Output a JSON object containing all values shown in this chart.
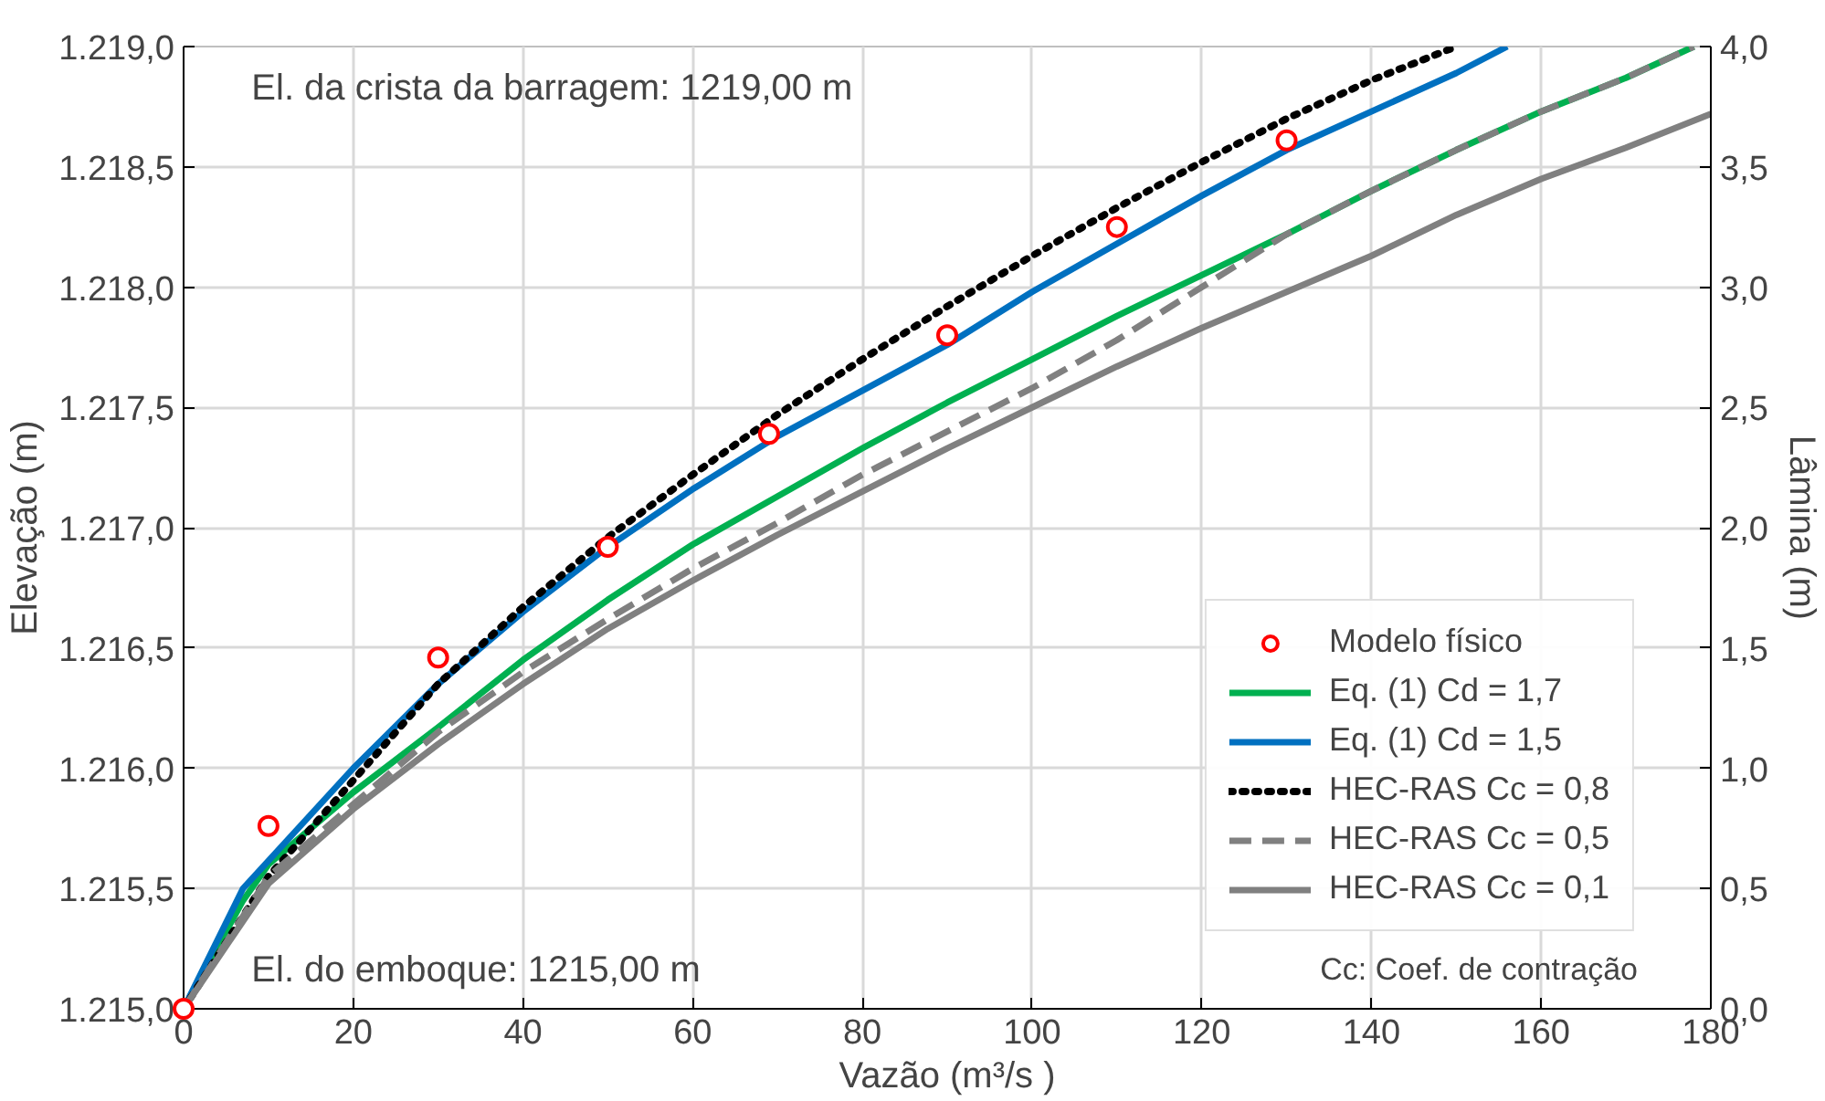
{
  "chart_data": {
    "type": "line",
    "xlabel": "Vazão (m³/s )",
    "ylabel": "Elevação (m)",
    "y2label": "Lâmina (m)",
    "xlim": [
      0,
      180
    ],
    "xticks": [
      0,
      20,
      40,
      60,
      80,
      100,
      120,
      140,
      160,
      180
    ],
    "ylim": [
      1215,
      1219
    ],
    "yticks": [
      {
        "value": 1215,
        "label": "1.215,0"
      },
      {
        "value": 1215.5,
        "label": "1.215,5"
      },
      {
        "value": 1216,
        "label": "1.216,0"
      },
      {
        "value": 1216.5,
        "label": "1.216,5"
      },
      {
        "value": 1217,
        "label": "1.217,0"
      },
      {
        "value": 1217.5,
        "label": "1.217,5"
      },
      {
        "value": 1218,
        "label": "1.218,0"
      },
      {
        "value": 1218.5,
        "label": "1.218,5"
      },
      {
        "value": 1219,
        "label": "1.219,0"
      }
    ],
    "y2lim": [
      0,
      4
    ],
    "y2ticks": [
      {
        "value": 0,
        "label": "0,0"
      },
      {
        "value": 0.5,
        "label": "0,5"
      },
      {
        "value": 1,
        "label": "1,0"
      },
      {
        "value": 1.5,
        "label": "1,5"
      },
      {
        "value": 2,
        "label": "2,0"
      },
      {
        "value": 2.5,
        "label": "2,5"
      },
      {
        "value": 3,
        "label": "3,0"
      },
      {
        "value": 3.5,
        "label": "3,5"
      },
      {
        "value": 4,
        "label": "4,0"
      }
    ],
    "grid": true,
    "legend": "bottom right",
    "annotations": [
      "El. da crista da barragem: 1219,00 m",
      "El. do emboque: 1215,00 m",
      "Cc: Coef. de contração"
    ],
    "series": [
      {
        "name": "Modelo físico",
        "type": "scatter",
        "marker": "circle",
        "color": "#ff0000",
        "x": [
          0,
          10,
          30,
          50,
          69,
          90,
          110,
          130
        ],
        "values": [
          1215,
          1215.76,
          1216.46,
          1216.92,
          1217.39,
          1217.8,
          1218.25,
          1218.61
        ]
      },
      {
        "name": "Eq. (1) Cd = 1,7",
        "line_style": "solid",
        "color": "#00b050",
        "x": [
          0,
          7,
          10,
          20,
          30,
          40,
          50,
          60,
          70,
          80,
          90,
          100,
          110,
          120,
          130,
          140,
          150,
          160,
          170,
          178
        ],
        "values": [
          1215,
          1215.45,
          1215.6,
          1215.9,
          1216.17,
          1216.45,
          1216.7,
          1216.93,
          1217.13,
          1217.33,
          1217.52,
          1217.7,
          1217.88,
          1218.05,
          1218.22,
          1218.4,
          1218.57,
          1218.73,
          1218.87,
          1219
        ]
      },
      {
        "name": "Eq. (1) Cd = 1,5",
        "line_style": "solid",
        "color": "#0070c0",
        "x": [
          0,
          7,
          20,
          30,
          40,
          50,
          60,
          70,
          80,
          90,
          100,
          110,
          120,
          130,
          140,
          150,
          156
        ],
        "values": [
          1215,
          1215.5,
          1216,
          1216.35,
          1216.65,
          1216.92,
          1217.16,
          1217.38,
          1217.57,
          1217.76,
          1217.98,
          1218.18,
          1218.38,
          1218.57,
          1218.73,
          1218.89,
          1219
        ]
      },
      {
        "name": "HEC-RAS Cc = 0,8",
        "line_style": "dotted",
        "color": "#000000",
        "x": [
          0,
          10,
          20,
          30,
          40,
          50,
          60,
          70,
          80,
          90,
          100,
          110,
          120,
          130,
          140,
          150
        ],
        "values": [
          1215,
          1215.55,
          1215.95,
          1216.35,
          1216.67,
          1216.96,
          1217.22,
          1217.47,
          1217.7,
          1217.92,
          1218.13,
          1218.33,
          1218.52,
          1218.7,
          1218.86,
          1219
        ]
      },
      {
        "name": "HEC-RAS Cc = 0,5",
        "line_style": "dashed",
        "color": "#808080",
        "x": [
          0,
          10,
          20,
          30,
          40,
          50,
          60,
          70,
          80,
          90,
          100,
          110,
          120,
          130,
          140,
          150,
          160,
          170,
          178
        ],
        "values": [
          1215,
          1215.55,
          1215.85,
          1216.15,
          1216.4,
          1216.62,
          1216.83,
          1217.02,
          1217.22,
          1217.4,
          1217.58,
          1217.78,
          1218,
          1218.22,
          1218.4,
          1218.57,
          1218.73,
          1218.87,
          1219
        ]
      },
      {
        "name": "HEC-RAS Cc = 0,1",
        "line_style": "solid",
        "color": "#808080",
        "x": [
          0,
          10,
          20,
          30,
          40,
          50,
          60,
          70,
          80,
          90,
          100,
          110,
          120,
          130,
          140,
          150,
          160,
          170,
          180
        ],
        "values": [
          1215,
          1215.52,
          1215.83,
          1216.1,
          1216.35,
          1216.58,
          1216.78,
          1216.97,
          1217.15,
          1217.33,
          1217.5,
          1217.67,
          1217.83,
          1217.98,
          1218.13,
          1218.3,
          1218.45,
          1218.58,
          1218.72
        ]
      }
    ]
  }
}
